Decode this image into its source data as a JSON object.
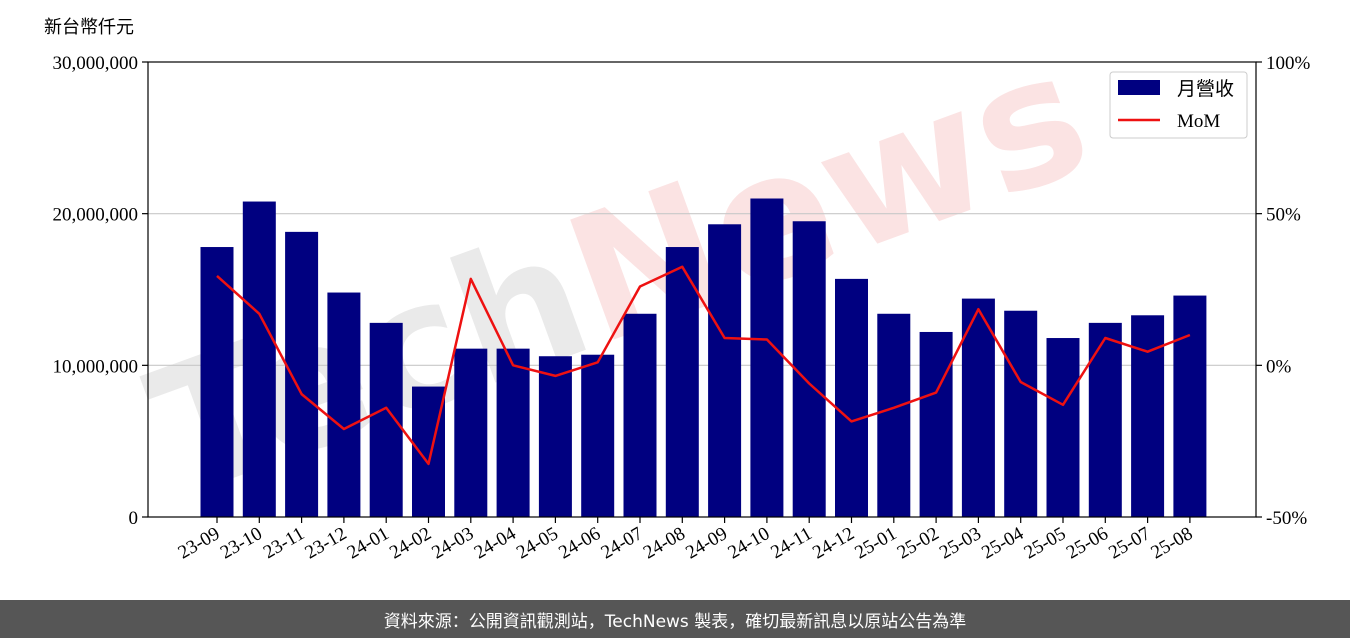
{
  "footer": {
    "source": "資料來源：公開資訊觀測站，TechNews 製表，確切最新訊息以原站公告為準"
  },
  "watermark": "TechNews",
  "colors": {
    "bar": "#000080",
    "line": "#ee1111",
    "grid": "#c8c8c8",
    "footer_bg": "#565656"
  },
  "chart_data": {
    "type": "bar",
    "unit_label": "新台幣仟元",
    "categories": [
      "23-09",
      "23-10",
      "23-11",
      "23-12",
      "24-01",
      "24-02",
      "24-03",
      "24-04",
      "24-05",
      "24-06",
      "24-07",
      "24-08",
      "24-09",
      "24-10",
      "24-11",
      "24-12",
      "25-01",
      "25-02",
      "25-03",
      "25-04",
      "25-05",
      "25-06",
      "25-07",
      "25-08"
    ],
    "series": [
      {
        "name": "月營收",
        "type": "bar",
        "axis": "left",
        "values": [
          17800000,
          20800000,
          18800000,
          14800000,
          12800000,
          8600000,
          11100000,
          11100000,
          10600000,
          10700000,
          13400000,
          17800000,
          19300000,
          21000000,
          19500000,
          15700000,
          13400000,
          12200000,
          14400000,
          13600000,
          11800000,
          12800000,
          13300000,
          14600000
        ]
      },
      {
        "name": "MoM",
        "type": "line",
        "axis": "right",
        "values": [
          29.5,
          17,
          -9.5,
          -21,
          -14,
          -32.5,
          28.5,
          0,
          -3.5,
          1,
          26,
          32.5,
          9,
          8.5,
          -6,
          -18.5,
          -14,
          -9,
          18.5,
          -5.5,
          -13,
          9,
          4.5,
          10
        ]
      }
    ],
    "y_left": {
      "min": 0,
      "max": 30000000,
      "ticks": [
        0,
        10000000,
        20000000,
        30000000
      ],
      "tick_labels": [
        "0",
        "10,000,000",
        "20,000,000",
        "30,000,000"
      ]
    },
    "y_right": {
      "min": -50,
      "max": 100,
      "ticks": [
        -50,
        0,
        50,
        100
      ],
      "tick_labels": [
        "-50%",
        "0%",
        "50%",
        "100%"
      ]
    },
    "grid": true,
    "legend_position": "top-right"
  }
}
